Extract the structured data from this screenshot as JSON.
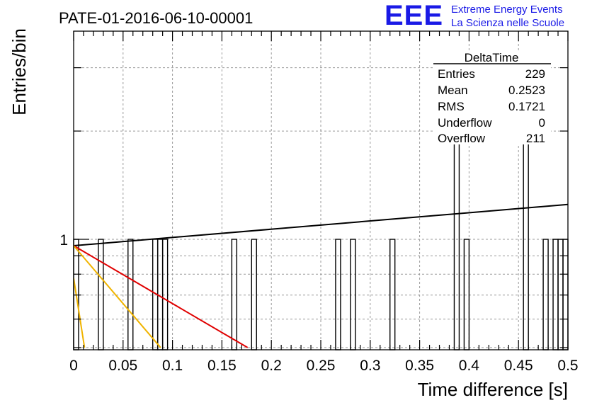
{
  "header": {
    "logo": "EEE",
    "org_line1": "Extreme Energy Events",
    "org_line2": "La Scienza nelle Scuole",
    "brand_color": "#1a1ae6"
  },
  "chart_data": {
    "type": "bar",
    "title": "PATE-01-2016-06-10-00001",
    "xlabel": "Time difference [s]",
    "ylabel": "Entries/bin",
    "xlim": [
      0,
      0.5
    ],
    "ylim_log": true,
    "y_tick_labels": [
      "1"
    ],
    "x_tick_labels": [
      "0",
      "0.05",
      "0.1",
      "0.15",
      "0.2",
      "0.25",
      "0.3",
      "0.35",
      "0.4",
      "0.45",
      "0.5"
    ],
    "grid": true,
    "bin_width": 0.005,
    "bins": [
      {
        "x": 0.0,
        "count": 1
      },
      {
        "x": 0.025,
        "count": 1
      },
      {
        "x": 0.055,
        "count": 1
      },
      {
        "x": 0.08,
        "count": 1
      },
      {
        "x": 0.085,
        "count": 1
      },
      {
        "x": 0.09,
        "count": 1
      },
      {
        "x": 0.16,
        "count": 1
      },
      {
        "x": 0.18,
        "count": 1
      },
      {
        "x": 0.265,
        "count": 1
      },
      {
        "x": 0.28,
        "count": 1
      },
      {
        "x": 0.32,
        "count": 1
      },
      {
        "x": 0.385,
        "count": 2
      },
      {
        "x": 0.395,
        "count": 1
      },
      {
        "x": 0.455,
        "count": 2
      },
      {
        "x": 0.475,
        "count": 1
      },
      {
        "x": 0.485,
        "count": 1
      },
      {
        "x": 0.49,
        "count": 1
      },
      {
        "x": 0.495,
        "count": 1
      }
    ],
    "fits": [
      {
        "color": "#000000",
        "x": [
          0.0,
          0.5
        ],
        "y": [
          0.96,
          1.25
        ]
      },
      {
        "color": "#e00000",
        "x": [
          0.0,
          0.176
        ],
        "y": [
          0.96,
          0.5
        ]
      },
      {
        "color": "#f0b400",
        "x": [
          0.0,
          0.088
        ],
        "y": [
          0.96,
          0.5
        ]
      },
      {
        "color": "#f0b400",
        "x": [
          0.0,
          0.011
        ],
        "y": [
          0.78,
          0.5
        ]
      }
    ],
    "stats": {
      "title": "DeltaTime",
      "rows": [
        {
          "label": "Entries",
          "value": "229"
        },
        {
          "label": "Mean",
          "value": "0.2523"
        },
        {
          "label": "RMS",
          "value": "0.1721"
        },
        {
          "label": "Underflow",
          "value": "0"
        },
        {
          "label": "Overflow",
          "value": "211"
        }
      ]
    }
  }
}
